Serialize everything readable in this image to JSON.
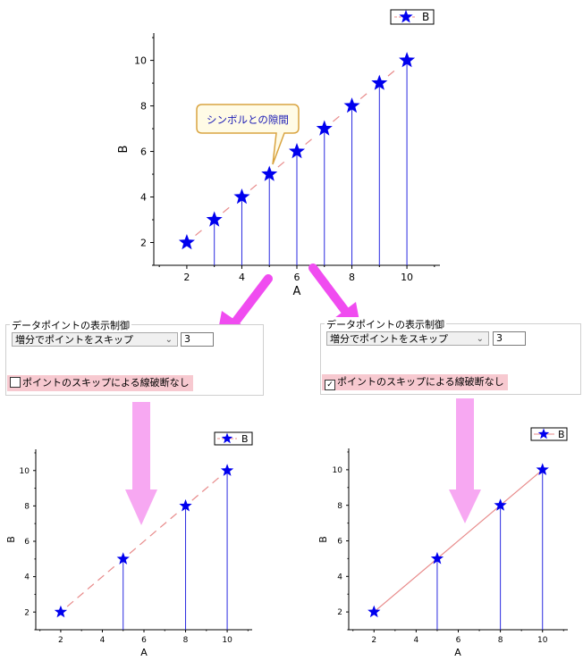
{
  "chart_data": [
    {
      "type": "scatter",
      "title": "",
      "xlabel": "A",
      "ylabel": "B",
      "x": [
        2,
        3,
        4,
        5,
        6,
        7,
        8,
        9,
        10
      ],
      "series": [
        {
          "name": "B",
          "values": [
            2,
            3,
            4,
            5,
            6,
            7,
            8,
            9,
            10
          ]
        }
      ],
      "xticks": [
        2,
        4,
        6,
        8,
        10
      ],
      "yticks": [
        2,
        4,
        6,
        8,
        10
      ],
      "xlim": [
        0.8,
        11.2
      ],
      "ylim": [
        1,
        11.2
      ],
      "line_style": "dashed-with-gap",
      "drop_lines": true,
      "legend_position": "top-right",
      "annotation": "シンボルとの隙間"
    },
    {
      "type": "scatter",
      "title": "",
      "xlabel": "A",
      "ylabel": "B",
      "x": [
        2,
        5,
        8,
        10
      ],
      "series": [
        {
          "name": "B",
          "values": [
            2,
            5,
            8,
            10
          ]
        }
      ],
      "xticks": [
        2,
        4,
        6,
        8,
        10
      ],
      "yticks": [
        2,
        4,
        6,
        8,
        10
      ],
      "xlim": [
        0.8,
        11.2
      ],
      "ylim": [
        1,
        11.2
      ],
      "line_style": "dashed-broken-at-skips",
      "drop_lines": true,
      "legend_position": "top-right"
    },
    {
      "type": "scatter",
      "title": "",
      "xlabel": "A",
      "ylabel": "B",
      "x": [
        2,
        5,
        8,
        10
      ],
      "series": [
        {
          "name": "B",
          "values": [
            2,
            5,
            8,
            10
          ]
        }
      ],
      "xticks": [
        2,
        4,
        6,
        8,
        10
      ],
      "yticks": [
        2,
        4,
        6,
        8,
        10
      ],
      "xlim": [
        0.8,
        11.2
      ],
      "ylim": [
        1,
        11.2
      ],
      "line_style": "solid-unbroken",
      "drop_lines": true,
      "legend_position": "top-right"
    }
  ],
  "colors": {
    "symbol": "#0000ee",
    "connect_line": "#e88a8a",
    "drop_line": "#2a2ae0",
    "callout_border": "#d9a441",
    "big_arrow": "#f04cf0",
    "down_arrow": "#f7a8f2",
    "highlight": "#f7c9d0"
  },
  "dialogs": [
    {
      "title": "データポイントの表示制御",
      "dropdown": "増分でポイントをスキップ",
      "increment": "3",
      "checkbox_label": "ポイントのスキップによる線破断なし",
      "checked": false
    },
    {
      "title": "データポイントの表示制御",
      "dropdown": "増分でポイントをスキップ",
      "increment": "3",
      "checkbox_label": "ポイントのスキップによる線破断なし",
      "checked": true
    }
  ]
}
